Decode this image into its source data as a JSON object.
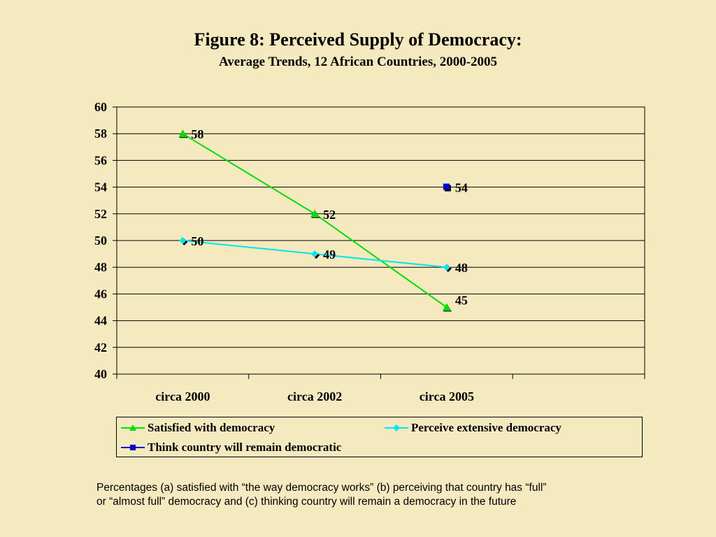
{
  "chart_data": {
    "type": "line",
    "title": "Figure 8:  Perceived Supply of Democracy:",
    "subtitle": "Average Trends, 12 African Countries, 2000-2005",
    "categories": [
      "circa 2000",
      "circa 2002",
      "circa 2005"
    ],
    "ylim": [
      40,
      60
    ],
    "yticks": [
      40,
      42,
      44,
      46,
      48,
      50,
      52,
      54,
      56,
      58,
      60
    ],
    "grid": true,
    "legend_position": "bottom",
    "series": [
      {
        "name": "Satisfied with democracy",
        "values": [
          58,
          52,
          45
        ],
        "color": "#00dd00",
        "marker": "triangle"
      },
      {
        "name": "Perceive extensive democracy",
        "values": [
          50,
          49,
          48
        ],
        "color": "#00e5ee",
        "marker": "diamond"
      },
      {
        "name": "Think country will remain democratic",
        "values": [
          null,
          null,
          54
        ],
        "color": "#0000cc",
        "marker": "square"
      }
    ]
  },
  "caption": {
    "line1": "Percentages (a) satisfied with “the way democracy works” (b) perceiving that country has “full”",
    "line2": "or “almost full” democracy and (c) thinking country will remain a democracy in the future"
  }
}
